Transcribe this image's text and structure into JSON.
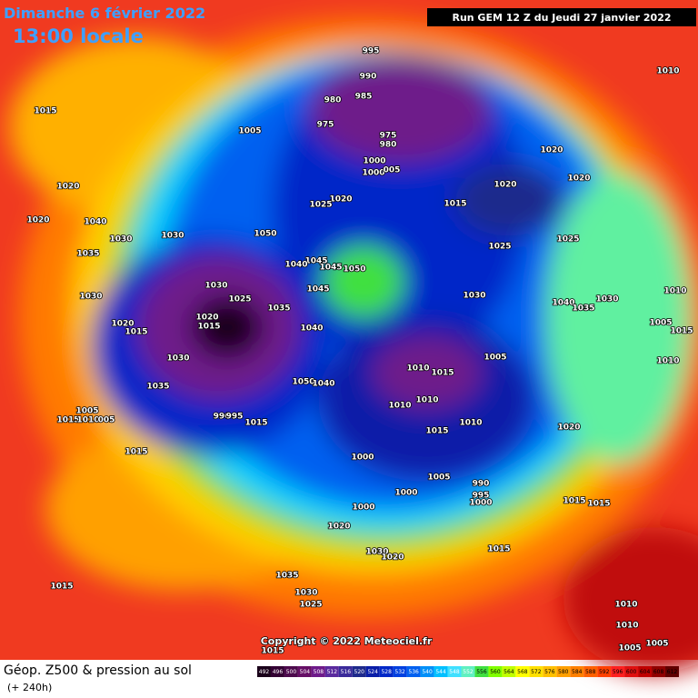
{
  "header": {
    "title": "Dimanche 6 février 2022",
    "subtitle": "13:00 locale",
    "run": "Run GEM 12 Z du Jeudi 27 janvier 2022"
  },
  "map": {
    "copyright": "Copyright © 2022 Meteociel.fr",
    "pressure_labels": [
      "995",
      "990",
      "985",
      "980",
      "975",
      "975",
      "980",
      "1000",
      "1000",
      "005",
      "1005",
      "1015",
      "1010",
      "1020",
      "1020",
      "1020",
      "1015",
      "1025",
      "1025",
      "1020",
      "1020",
      "1040",
      "1030",
      "1030",
      "1050",
      "1035",
      "1045",
      "1045",
      "1050",
      "1040",
      "1020",
      "1025",
      "1030",
      "1030",
      "1025",
      "1045",
      "1030",
      "1040",
      "1035",
      "1030",
      "1010",
      "1005",
      "1015",
      "1010",
      "1020",
      "1015",
      "1035",
      "1020",
      "1015",
      "1040",
      "1005",
      "1030",
      "1035",
      "1050",
      "1040",
      "1010",
      "1015",
      "1010",
      "1010",
      "1015",
      "1010",
      "1020",
      "1005",
      "1015",
      "1010",
      "005",
      "990",
      "995",
      "1015",
      "1015",
      "1000",
      "1005",
      "990",
      "995",
      "1000",
      "1000",
      "1000",
      "1015",
      "1015",
      "1020",
      "1015",
      "1030",
      "1020",
      "1035",
      "1030",
      "1025",
      "1015",
      "1010",
      "1010",
      "1005",
      "1005",
      "1015"
    ],
    "colorbar": {
      "ticks": [
        492,
        496,
        500,
        504,
        508,
        512,
        516,
        520,
        524,
        528,
        532,
        536,
        540,
        544,
        548,
        552,
        556,
        560,
        564,
        568,
        572,
        576,
        580,
        584,
        588,
        592,
        596,
        600,
        604,
        608,
        612
      ],
      "colors": [
        "#1a001a",
        "#330033",
        "#4d0a4d",
        "#660f66",
        "#6e1a8a",
        "#5a2a9e",
        "#3a2a9a",
        "#1e2a8c",
        "#0a1ea8",
        "#0028c8",
        "#0040e0",
        "#0060f0",
        "#0090f8",
        "#00c0ff",
        "#40e0ff",
        "#60f0c0",
        "#40e040",
        "#80ff00",
        "#c0ff00",
        "#ffff00",
        "#ffe000",
        "#ffc000",
        "#ffa000",
        "#ff8000",
        "#ff6000",
        "#ff4000",
        "#ff2020",
        "#e01010",
        "#c00000",
        "#900000",
        "#600000"
      ]
    }
  },
  "legend": {
    "title": "Géop. Z500 & pression au sol",
    "subtitle": "(+ 240h)"
  }
}
